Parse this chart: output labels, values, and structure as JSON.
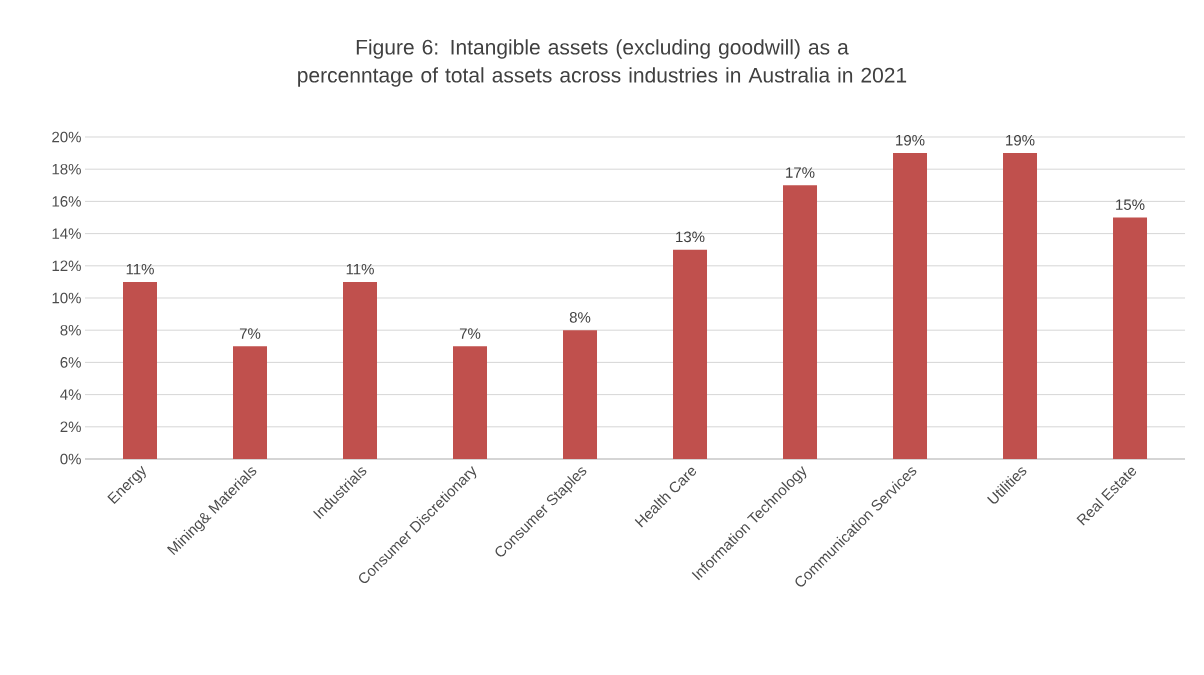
{
  "chart_data": {
    "type": "bar",
    "title": "Figure 6: Intangible assets (excluding goodwill) as a percenntage of total assets across industries in Australia in 2021",
    "categories": [
      "Energy",
      "Mining& Materials",
      "Industrials",
      "Consumer Discretionary",
      "Consumer Staples",
      "Health Care",
      "Information Technology",
      "Communication Services",
      "Utilities",
      "Real Estate"
    ],
    "values": [
      11,
      7,
      11,
      7,
      8,
      13,
      17,
      19,
      19,
      15
    ],
    "value_labels": [
      "11%",
      "7%",
      "11%",
      "7%",
      "8%",
      "13%",
      "17%",
      "19%",
      "19%",
      "15%"
    ],
    "color": "#c0504d",
    "ylim": [
      0,
      20
    ],
    "yticks": [
      {
        "value": 0,
        "label": "0%"
      },
      {
        "value": 2,
        "label": "2%"
      },
      {
        "value": 4,
        "label": "4%"
      },
      {
        "value": 6,
        "label": "6%"
      },
      {
        "value": 8,
        "label": "8%"
      },
      {
        "value": 10,
        "label": "10%"
      },
      {
        "value": 12,
        "label": "12%"
      },
      {
        "value": 14,
        "label": "14%"
      },
      {
        "value": 16,
        "label": "16%"
      },
      {
        "value": 18,
        "label": "18%"
      },
      {
        "value": 20,
        "label": "20%"
      }
    ],
    "grid": "y"
  }
}
